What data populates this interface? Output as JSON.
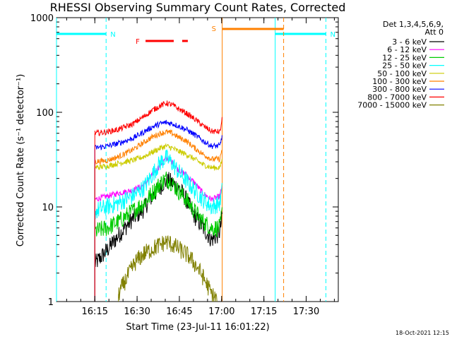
{
  "chart_data": {
    "type": "line",
    "title": "RHESSI Observing Summary Count Rates, Corrected",
    "xlabel": "Start Time (23-Jul-11 16:01:22)",
    "ylabel": "Corrected Count Rate (s⁻¹ detector⁻¹)",
    "yscale": "log",
    "ylim": [
      1,
      1000
    ],
    "xlim_minutes": [
      0,
      100
    ],
    "x_unit": "minutes after 16:01:22",
    "xtick_labels": [
      "16:15",
      "16:30",
      "16:45",
      "17:00",
      "17:15",
      "17:30"
    ],
    "xtick_minutes": [
      13.6,
      28.6,
      43.6,
      58.6,
      73.6,
      88.6
    ],
    "ytick_labels": [
      "1",
      "10",
      "100",
      "1000"
    ],
    "ytick_values": [
      1,
      10,
      100,
      1000
    ],
    "legend_header": [
      "Det 1,3,4,5,6,9,",
      "Att 0"
    ],
    "legend_position": "right",
    "series": [
      {
        "name": "3 - 6 keV",
        "color": "#000000",
        "x": [
          13.6,
          18,
          22,
          27,
          31,
          33,
          36,
          38,
          40,
          42,
          44,
          46,
          49,
          52,
          55,
          57,
          58,
          58.8
        ],
        "y": [
          2.5,
          3.5,
          5,
          7.5,
          9.5,
          12,
          15,
          18,
          19,
          17,
          15,
          12,
          8,
          6,
          4.5,
          5,
          5.5,
          8
        ]
      },
      {
        "name": "6 - 12 keV",
        "color": "#ff00ff",
        "x": [
          13.6,
          18,
          22,
          27,
          31,
          34,
          37,
          39,
          41,
          43,
          46,
          49,
          52,
          55,
          58,
          58.8
        ],
        "y": [
          12,
          13,
          14,
          15,
          17,
          22,
          28,
          33,
          30,
          25,
          22,
          18,
          14,
          12,
          13,
          17
        ]
      },
      {
        "name": "12 - 25 keV",
        "color": "#00cc00",
        "x": [
          13.6,
          18,
          22,
          27,
          31,
          34,
          37,
          39,
          41,
          43,
          46,
          49,
          52,
          55,
          58,
          58.8
        ],
        "y": [
          5.5,
          6,
          7,
          9,
          11,
          14,
          18,
          20,
          18,
          15,
          12,
          9,
          7,
          6,
          6,
          9
        ]
      },
      {
        "name": "25 - 50 keV",
        "color": "#00ffff",
        "x": [
          13.6,
          18,
          22,
          27,
          31,
          34,
          37,
          39,
          41,
          43,
          46,
          49,
          52,
          55,
          58,
          58.8
        ],
        "y": [
          9,
          10,
          11,
          13,
          16,
          22,
          30,
          33,
          29,
          24,
          19,
          15,
          12,
          10,
          11,
          15
        ]
      },
      {
        "name": "50 - 100 keV",
        "color": "#cccc00",
        "x": [
          13.6,
          18,
          22,
          27,
          31,
          34,
          37,
          39,
          41,
          43,
          46,
          49,
          52,
          55,
          58,
          58.8
        ],
        "y": [
          26,
          27,
          29,
          31,
          34,
          38,
          42,
          44,
          42,
          39,
          36,
          32,
          28,
          26,
          26,
          32
        ]
      },
      {
        "name": "100 - 300 keV",
        "color": "#ff8000",
        "x": [
          13.6,
          18,
          22,
          27,
          31,
          34,
          37,
          39,
          41,
          43,
          46,
          49,
          52,
          55,
          58,
          58.8
        ],
        "y": [
          30,
          31,
          34,
          40,
          48,
          55,
          60,
          62,
          60,
          55,
          50,
          42,
          36,
          32,
          32,
          42
        ]
      },
      {
        "name": "300 - 800 keV",
        "color": "#0000ff",
        "x": [
          13.6,
          18,
          22,
          27,
          31,
          34,
          37,
          39,
          41,
          43,
          46,
          49,
          52,
          55,
          58,
          58.8
        ],
        "y": [
          42,
          44,
          47,
          53,
          62,
          70,
          76,
          78,
          76,
          72,
          66,
          58,
          50,
          44,
          44,
          58
        ]
      },
      {
        "name": "800 - 7000 keV",
        "color": "#ff0000",
        "x": [
          13.6,
          18,
          22,
          27,
          31,
          34,
          37,
          39,
          41,
          43,
          46,
          49,
          52,
          55,
          58,
          58.8
        ],
        "y": [
          60,
          62,
          66,
          75,
          90,
          105,
          118,
          125,
          120,
          110,
          98,
          85,
          72,
          63,
          62,
          85
        ]
      },
      {
        "name": "7000 - 15000 keV",
        "color": "#808000",
        "x": [
          22,
          25,
          28,
          31,
          34,
          37,
          39,
          41,
          44,
          47,
          50,
          53,
          55,
          57
        ],
        "y": [
          1.2,
          1.8,
          2.6,
          3.2,
          3.6,
          4,
          4.3,
          4,
          3.5,
          3,
          2.3,
          1.6,
          1.2,
          1.05
        ]
      }
    ],
    "flags": [
      {
        "label": "N",
        "color": "#00ffff",
        "shown": "night (eclipse) intervals"
      },
      {
        "label": "F",
        "color": "#ff0000",
        "shown": "flare"
      },
      {
        "label": "S",
        "color": "#ff8000",
        "shown": "SAA"
      }
    ],
    "flag_intervals": {
      "N": [
        [
          0,
          17.6
        ],
        [
          77.6,
          95.6
        ]
      ],
      "F": [
        [
          31.6,
          41.6
        ],
        [
          44.6,
          46.6
        ]
      ],
      "S": [
        [
          58.8,
          80.6
        ]
      ]
    },
    "timestamp": "18-Oct-2021 12:15"
  }
}
